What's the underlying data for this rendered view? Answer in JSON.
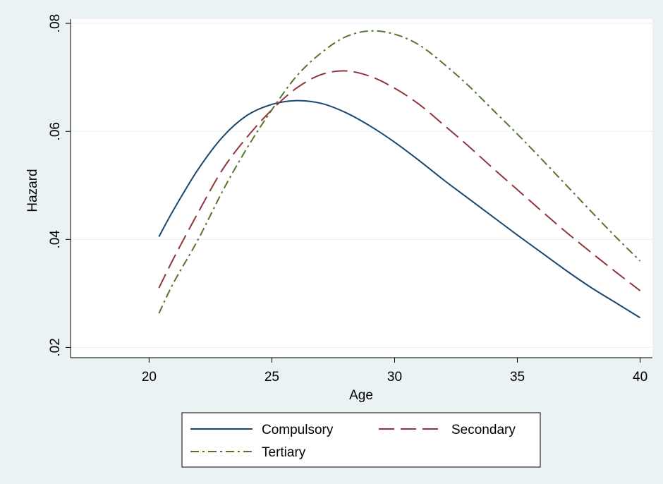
{
  "chart_data": {
    "type": "line",
    "title": "",
    "xlabel": "Age",
    "ylabel": "Hazard",
    "xlim": [
      16.8,
      40.5
    ],
    "ylim": [
      0.0181,
      0.0808
    ],
    "xticks": [
      20,
      25,
      30,
      35,
      40
    ],
    "xtick_labels": [
      "20",
      "25",
      "30",
      "35",
      "40"
    ],
    "yticks": [
      0.02,
      0.04,
      0.06,
      0.08
    ],
    "ytick_labels": [
      ".02",
      ".04",
      ".06",
      ".08"
    ],
    "grid": "horizontal",
    "legend_position": "bottom",
    "colors": {
      "outer_background": "#eaf2f3",
      "plot_background": "#ffffff",
      "grid": "#eaf2f3"
    },
    "series": [
      {
        "name": "Compulsory",
        "color": "#1a476f",
        "dash": "solid",
        "x": [
          20.4,
          21,
          22,
          23,
          24,
          25,
          26,
          27,
          28,
          29,
          30,
          31,
          32,
          33,
          34,
          35,
          36,
          37,
          38,
          39,
          40
        ],
        "y": [
          0.0405,
          0.0455,
          0.053,
          0.059,
          0.063,
          0.065,
          0.0657,
          0.0652,
          0.0635,
          0.061,
          0.058,
          0.0546,
          0.051,
          0.0476,
          0.0442,
          0.0408,
          0.0375,
          0.0342,
          0.0311,
          0.0283,
          0.0255
        ]
      },
      {
        "name": "Secondary",
        "color": "#90353b",
        "dash": "longdash",
        "x": [
          20.4,
          21,
          22,
          23,
          24,
          25,
          26,
          27,
          28,
          29,
          30,
          31,
          32,
          33,
          34,
          35,
          36,
          37,
          38,
          39,
          40
        ],
        "y": [
          0.031,
          0.0365,
          0.045,
          0.053,
          0.059,
          0.064,
          0.068,
          0.0705,
          0.0712,
          0.0702,
          0.068,
          0.065,
          0.0612,
          0.0573,
          0.0532,
          0.0492,
          0.0452,
          0.0413,
          0.0376,
          0.034,
          0.0305
        ]
      },
      {
        "name": "Tertiary",
        "color": "#55752f",
        "dash": "dashdot",
        "x": [
          20.4,
          21,
          22,
          23,
          24,
          25,
          26,
          27,
          28,
          29,
          30,
          31,
          32,
          33,
          34,
          35,
          36,
          37,
          38,
          39,
          40
        ],
        "y": [
          0.0263,
          0.032,
          0.04,
          0.049,
          0.057,
          0.064,
          0.0702,
          0.0745,
          0.0775,
          0.0786,
          0.078,
          0.076,
          0.0725,
          0.0685,
          0.064,
          0.0595,
          0.0548,
          0.05,
          0.0452,
          0.0405,
          0.036
        ]
      }
    ]
  }
}
